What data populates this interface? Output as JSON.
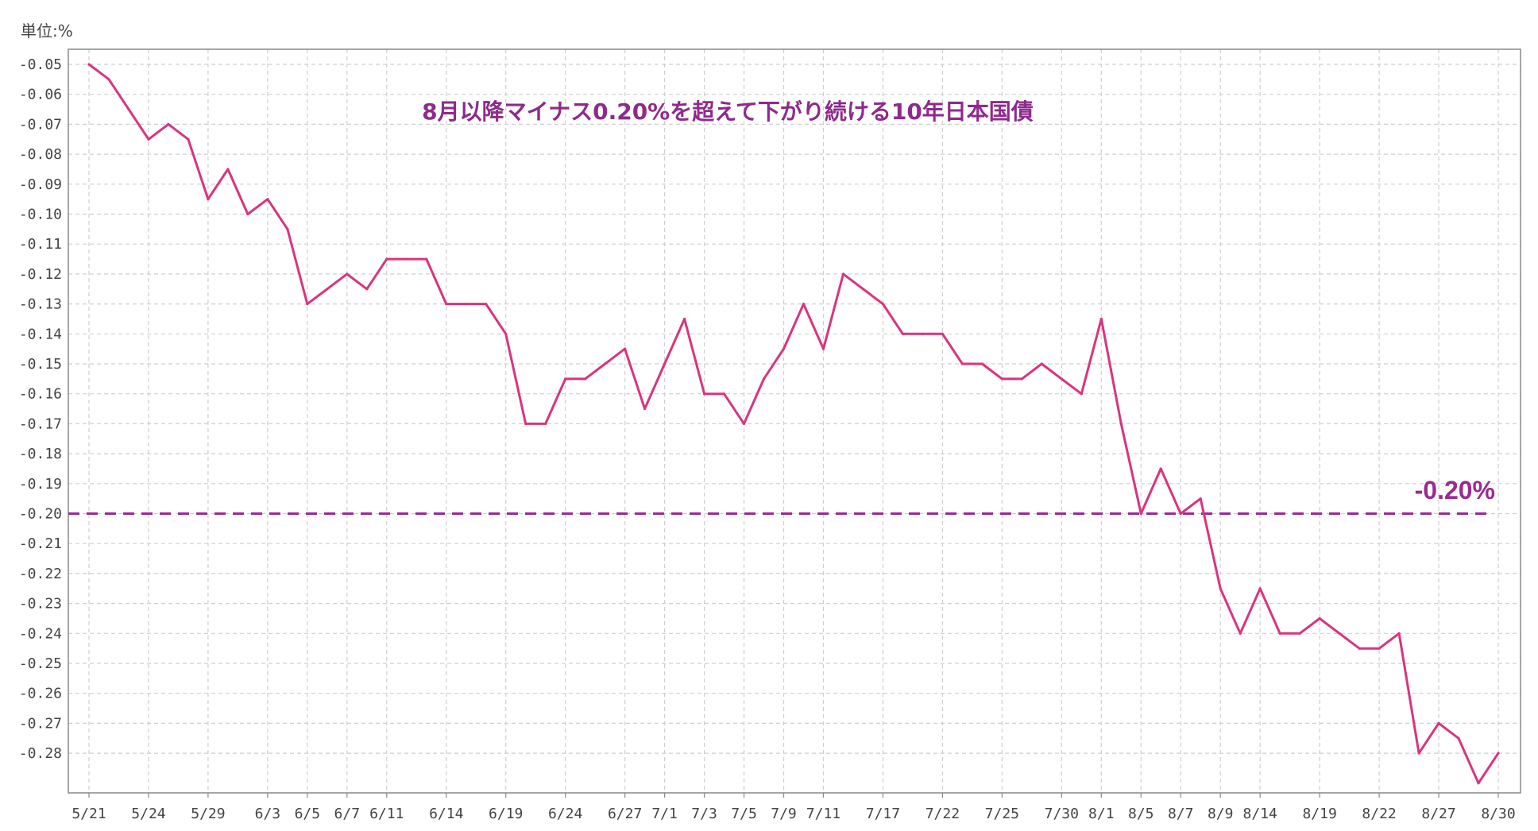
{
  "chart_data": {
    "type": "line",
    "unit_label": "単位:%",
    "title": "8月以降マイナス0.20%を超えて下がり続ける10年日本国債",
    "ylim": [
      -0.29,
      -0.045
    ],
    "y_ticks": [
      -0.05,
      -0.06,
      -0.07,
      -0.08,
      -0.09,
      -0.1,
      -0.11,
      -0.12,
      -0.13,
      -0.14,
      -0.15,
      -0.16,
      -0.17,
      -0.18,
      -0.19,
      -0.2,
      -0.21,
      -0.22,
      -0.23,
      -0.24,
      -0.25,
      -0.26,
      -0.27,
      -0.28
    ],
    "y_tick_labels": [
      "-0.05",
      "-0.06",
      "-0.07",
      "-0.08",
      "-0.09",
      "-0.10",
      "-0.11",
      "-0.12",
      "-0.13",
      "-0.14",
      "-0.15",
      "-0.16",
      "-0.17",
      "-0.18",
      "-0.19",
      "-0.20",
      "-0.21",
      "-0.22",
      "-0.23",
      "-0.24",
      "-0.25",
      "-0.26",
      "-0.27",
      "-0.28"
    ],
    "x_tick_labels": [
      {
        "i": 0,
        "label": "5/21"
      },
      {
        "i": 3,
        "label": "5/24"
      },
      {
        "i": 6,
        "label": "5/29"
      },
      {
        "i": 9,
        "label": "6/3"
      },
      {
        "i": 11,
        "label": "6/5"
      },
      {
        "i": 13,
        "label": "6/7"
      },
      {
        "i": 15,
        "label": "6/11"
      },
      {
        "i": 18,
        "label": "6/14"
      },
      {
        "i": 21,
        "label": "6/19"
      },
      {
        "i": 24,
        "label": "6/24"
      },
      {
        "i": 27,
        "label": "6/27"
      },
      {
        "i": 29,
        "label": "7/1"
      },
      {
        "i": 31,
        "label": "7/3"
      },
      {
        "i": 33,
        "label": "7/5"
      },
      {
        "i": 35,
        "label": "7/9"
      },
      {
        "i": 37,
        "label": "7/11"
      },
      {
        "i": 40,
        "label": "7/17"
      },
      {
        "i": 43,
        "label": "7/22"
      },
      {
        "i": 46,
        "label": "7/25"
      },
      {
        "i": 49,
        "label": "7/30"
      },
      {
        "i": 51,
        "label": "8/1"
      },
      {
        "i": 53,
        "label": "8/5"
      },
      {
        "i": 55,
        "label": "8/7"
      },
      {
        "i": 57,
        "label": "8/9"
      },
      {
        "i": 59,
        "label": "8/14"
      },
      {
        "i": 62,
        "label": "8/19"
      },
      {
        "i": 65,
        "label": "8/22"
      },
      {
        "i": 68,
        "label": "8/27"
      },
      {
        "i": 71,
        "label": "8/30"
      }
    ],
    "series": [
      {
        "values": [
          -0.05,
          -0.055,
          -0.065,
          -0.075,
          -0.07,
          -0.075,
          -0.095,
          -0.085,
          -0.1,
          -0.095,
          -0.105,
          -0.13,
          -0.125,
          -0.12,
          -0.125,
          -0.115,
          -0.115,
          -0.115,
          -0.13,
          -0.13,
          -0.13,
          -0.14,
          -0.17,
          -0.17,
          -0.155,
          -0.155,
          -0.15,
          -0.145,
          -0.165,
          -0.15,
          -0.135,
          -0.16,
          -0.16,
          -0.17,
          -0.155,
          -0.145,
          -0.13,
          -0.145,
          -0.12,
          -0.125,
          -0.13,
          -0.14,
          -0.14,
          -0.14,
          -0.15,
          -0.15,
          -0.155,
          -0.155,
          -0.15,
          -0.155,
          -0.16,
          -0.135,
          -0.17,
          -0.2,
          -0.185,
          -0.2,
          -0.195,
          -0.225,
          -0.24,
          -0.225,
          -0.24,
          -0.24,
          -0.235,
          -0.24,
          -0.245,
          -0.245,
          -0.24,
          -0.28,
          -0.27,
          -0.275,
          -0.29,
          -0.28
        ]
      }
    ],
    "reference_line": {
      "value": -0.2,
      "label": "-0.20%"
    },
    "grid": true,
    "colors": {
      "line": "#d9347f",
      "reference": "#9b2a93",
      "title": "#8e2a8c",
      "grid": "#cfcfcf",
      "axis": "#888888"
    }
  }
}
